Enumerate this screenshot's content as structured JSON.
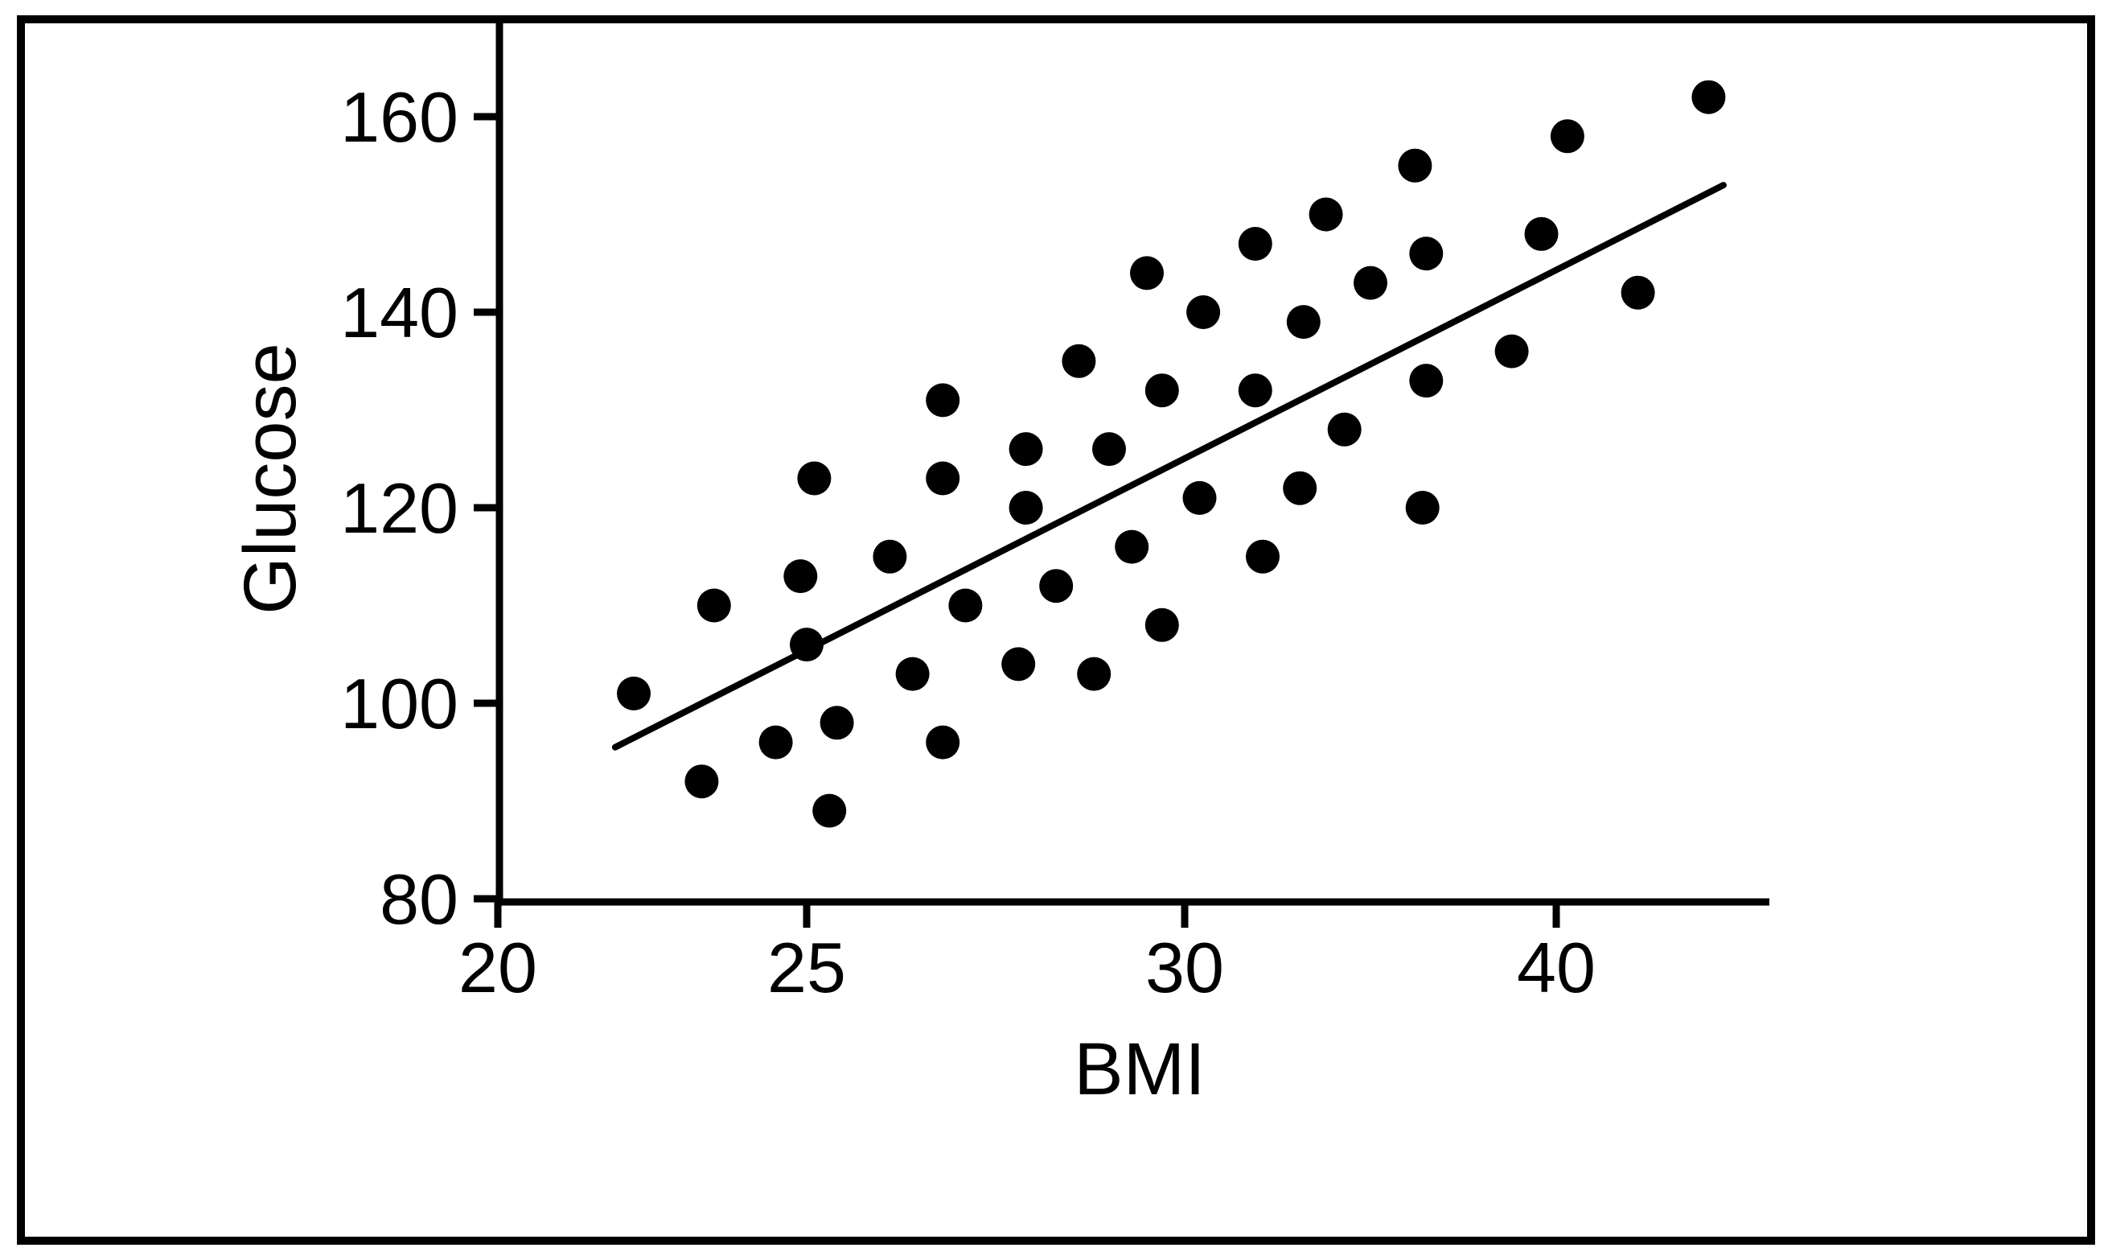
{
  "figure": {
    "background": "#ffffff",
    "ink_color": "#000000",
    "border_color": "#000000"
  },
  "chart_data": {
    "type": "scatter",
    "title": "",
    "xlabel": "BMI",
    "ylabel": "Glucose",
    "x_ticks": [
      20,
      25,
      30,
      40
    ],
    "y_ticks": [
      160,
      140,
      120,
      100,
      80
    ],
    "xlim": [
      20,
      45.7
    ],
    "ylim": [
      80,
      170
    ],
    "grid": false,
    "legend": "none",
    "marker": "filled-circle",
    "series": [
      {
        "name": "observations",
        "color": "#000000",
        "points": [
          [
            22.2,
            101
          ],
          [
            23.3,
            92
          ],
          [
            23.5,
            110
          ],
          [
            24.5,
            96
          ],
          [
            24.9,
            113
          ],
          [
            25.0,
            106
          ],
          [
            25.1,
            123
          ],
          [
            25.3,
            89
          ],
          [
            25.4,
            98
          ],
          [
            26.1,
            115
          ],
          [
            26.4,
            103
          ],
          [
            26.8,
            131
          ],
          [
            26.8,
            123
          ],
          [
            26.8,
            96
          ],
          [
            27.1,
            110
          ],
          [
            27.8,
            104
          ],
          [
            27.9,
            126
          ],
          [
            27.9,
            120
          ],
          [
            28.3,
            112
          ],
          [
            28.6,
            135
          ],
          [
            28.8,
            103
          ],
          [
            29.0,
            126
          ],
          [
            29.3,
            116
          ],
          [
            29.5,
            144
          ],
          [
            29.7,
            132
          ],
          [
            29.7,
            108
          ],
          [
            30.4,
            121
          ],
          [
            30.5,
            140
          ],
          [
            31.9,
            147
          ],
          [
            31.9,
            132
          ],
          [
            32.1,
            115
          ],
          [
            33.1,
            122
          ],
          [
            33.2,
            139
          ],
          [
            33.8,
            150
          ],
          [
            34.3,
            128
          ],
          [
            35.0,
            143
          ],
          [
            36.2,
            155
          ],
          [
            36.4,
            120
          ],
          [
            36.5,
            146
          ],
          [
            36.5,
            133
          ],
          [
            38.8,
            136
          ],
          [
            39.6,
            148
          ],
          [
            40.3,
            158
          ],
          [
            42.2,
            142
          ],
          [
            44.1,
            162
          ]
        ]
      }
    ],
    "trend_line": {
      "x1": 21.9,
      "y1": 95.5,
      "x2": 44.5,
      "y2": 153
    }
  }
}
